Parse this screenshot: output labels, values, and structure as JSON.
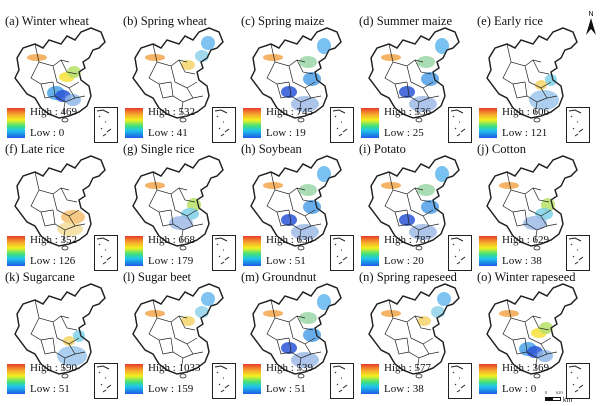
{
  "figure": {
    "panels": [
      {
        "title": "(a) Winter wheat",
        "high": "High : 469",
        "low": "Low : 0",
        "pattern": "wheat"
      },
      {
        "title": "(b) Spring wheat",
        "high": "High : 532",
        "low": "Low : 41",
        "pattern": "north"
      },
      {
        "title": "(c) Spring maize",
        "high": "High : 745",
        "low": "Low : 19",
        "pattern": "wide"
      },
      {
        "title": "(d) Summer maize",
        "high": "High : 536",
        "low": "Low : 25",
        "pattern": "wide"
      },
      {
        "title": "(e) Early rice",
        "high": "High : 606",
        "low": "Low : 121",
        "pattern": "south"
      },
      {
        "title": "(f) Late rice",
        "high": "High : 352",
        "low": "Low : 126",
        "pattern": "southwarm"
      },
      {
        "title": "(g) Single rice",
        "high": "High : 668",
        "low": "Low : 179",
        "pattern": "central"
      },
      {
        "title": "(h) Soybean",
        "high": "High : 630",
        "low": "Low : 51",
        "pattern": "wide"
      },
      {
        "title": "(i) Potato",
        "high": "High : 787",
        "low": "Low : 20",
        "pattern": "wide"
      },
      {
        "title": "(j) Cotton",
        "high": "High : 629",
        "low": "Low : 38",
        "pattern": "central"
      },
      {
        "title": "(k) Sugarcane",
        "high": "High : 590",
        "low": "Low : 51",
        "pattern": "south"
      },
      {
        "title": "(l) Sugar beet",
        "high": "High : 1033",
        "low": "Low : 159",
        "pattern": "north"
      },
      {
        "title": "(m) Groundnut",
        "high": "High : 539",
        "low": "Low : 51",
        "pattern": "wide"
      },
      {
        "title": "(n) Spring rapeseed",
        "high": "High : 577",
        "low": "Low : 38",
        "pattern": "north"
      },
      {
        "title": "(o) Winter rapeseed",
        "high": "High : 369",
        "low": "Low : 0",
        "pattern": "wheat"
      }
    ],
    "north_label": "N",
    "scale": {
      "zero": "0",
      "value": "620",
      "unit": "km"
    },
    "colors": {
      "high": "#e83a2a",
      "mid": "#f5f01f",
      "low": "#1e5be6",
      "outline": "#222222"
    }
  }
}
